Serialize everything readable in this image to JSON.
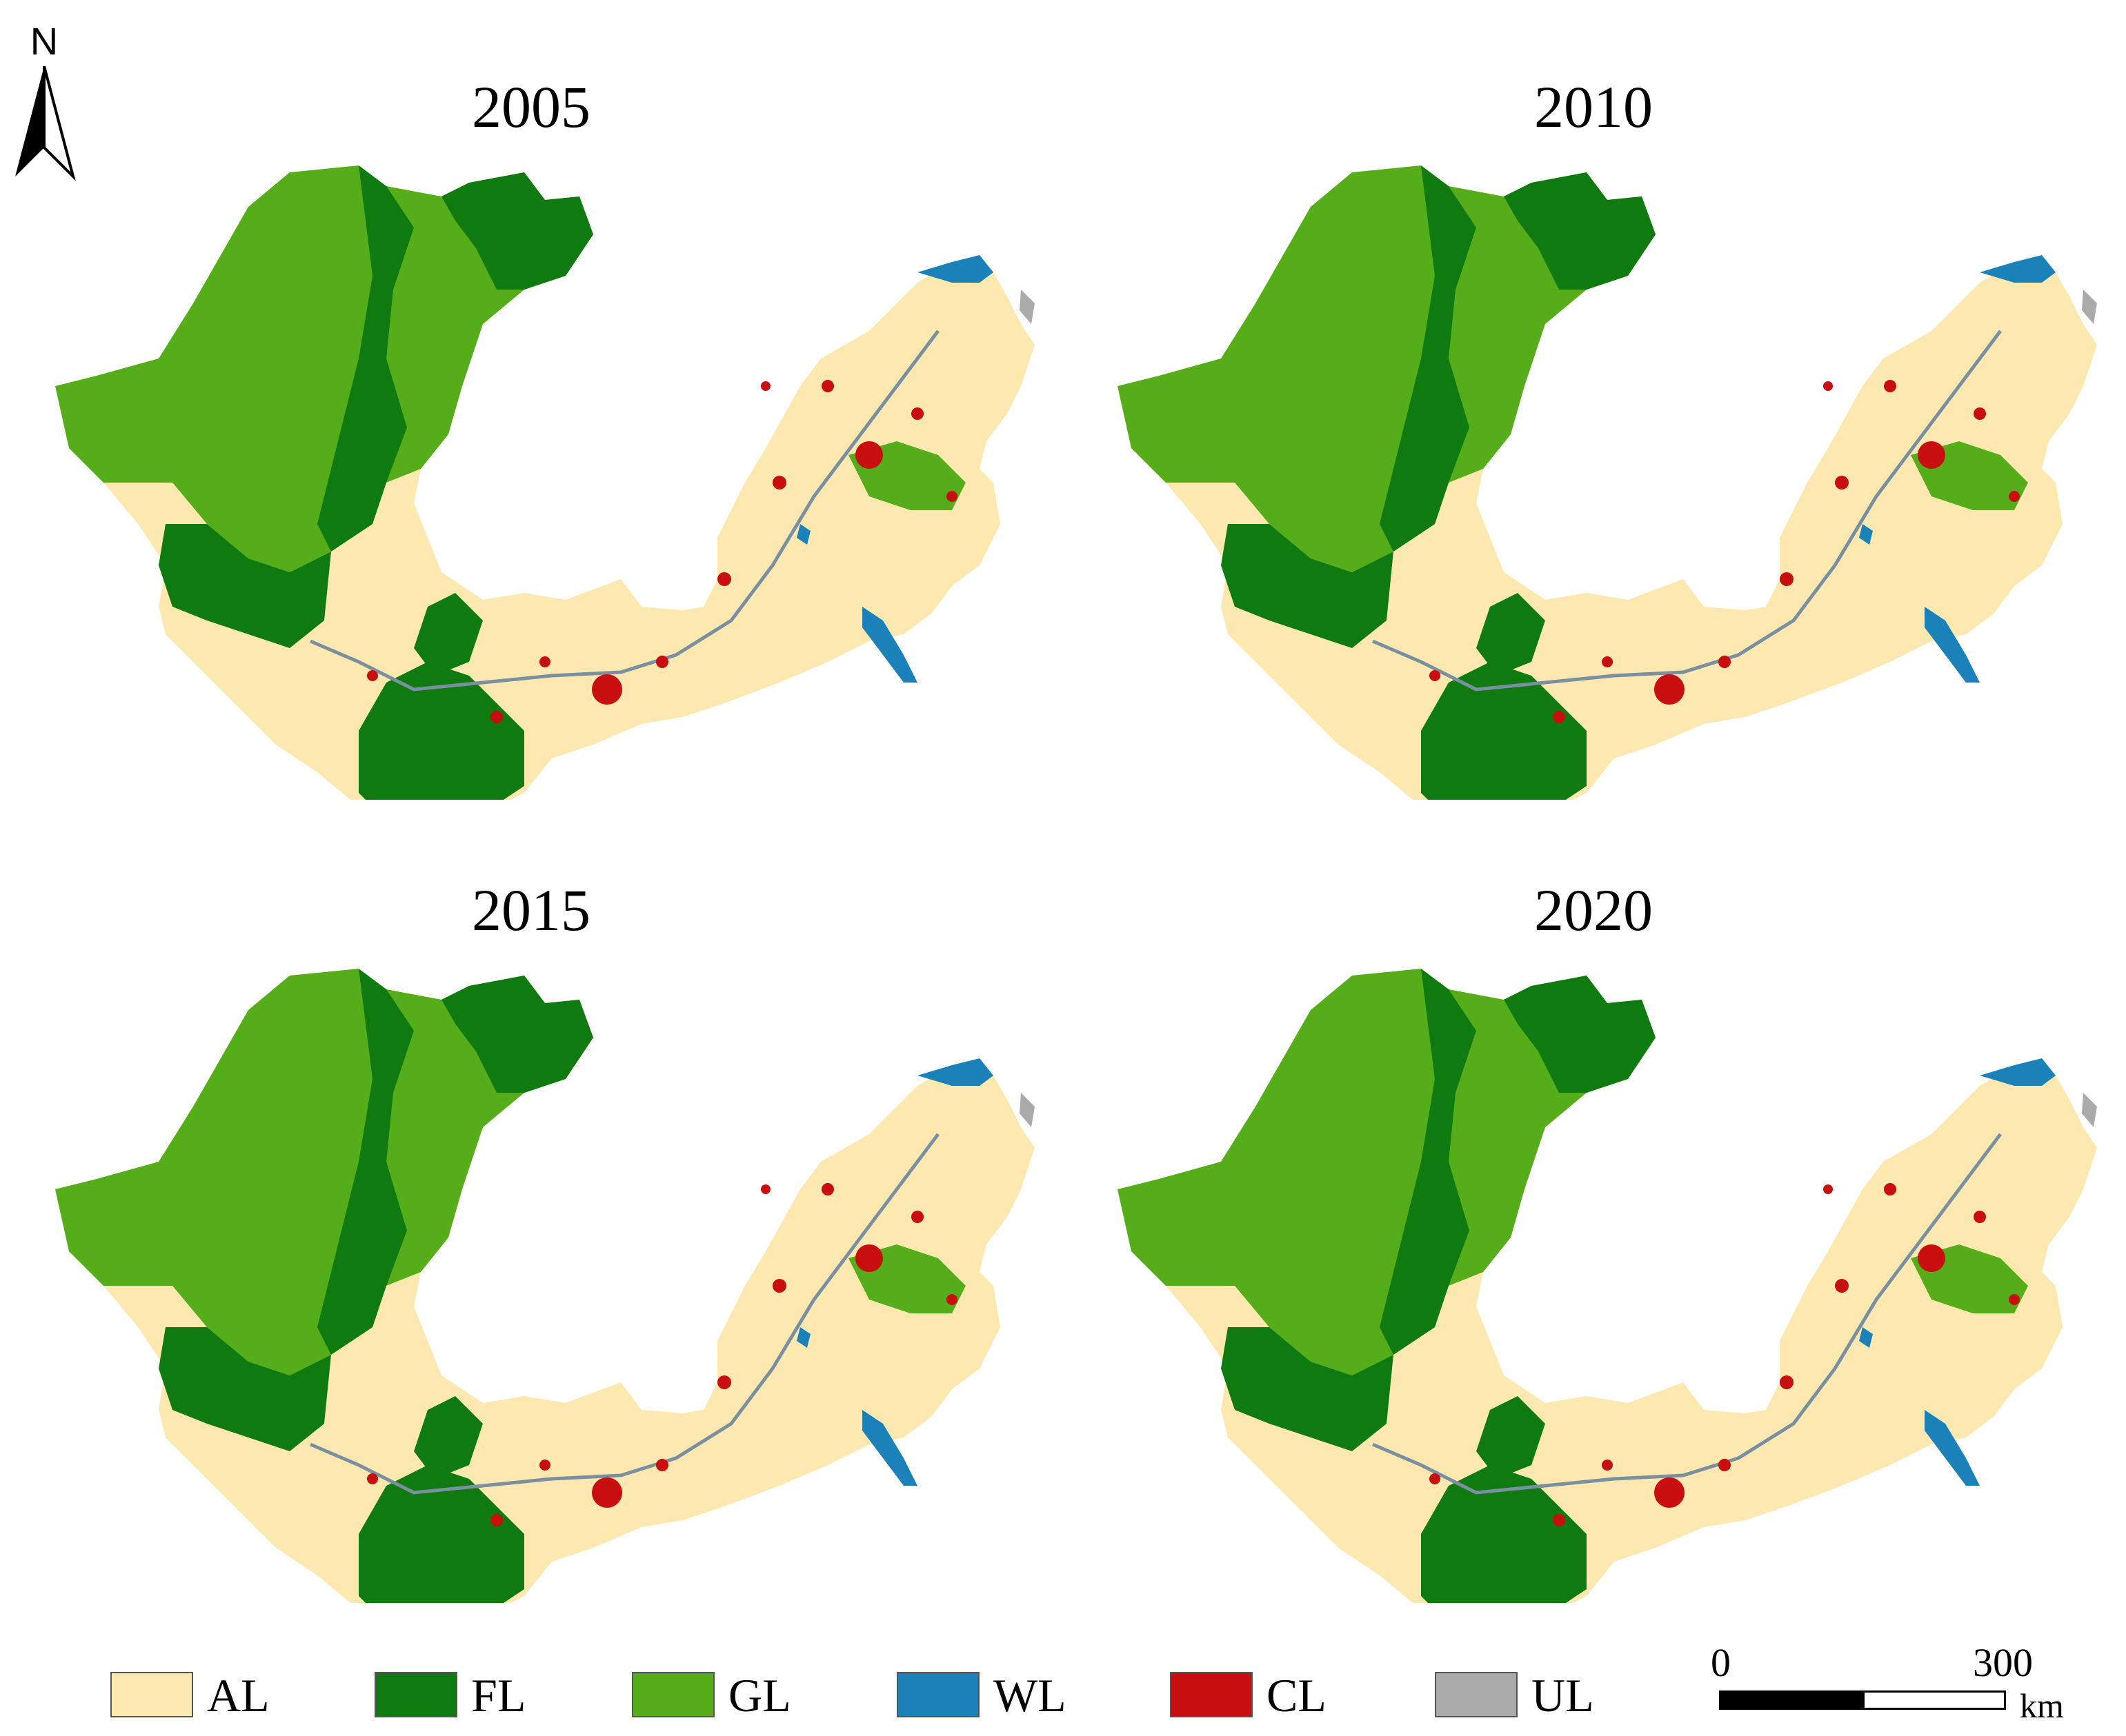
{
  "north_arrow": {
    "label": "N"
  },
  "panels": [
    {
      "year": "2005"
    },
    {
      "year": "2010"
    },
    {
      "year": "2015"
    },
    {
      "year": "2020"
    }
  ],
  "legend": [
    {
      "code": "AL",
      "color": "#fde9b0"
    },
    {
      "code": "FL",
      "color": "#0f7a0f"
    },
    {
      "code": "GL",
      "color": "#55ad1a"
    },
    {
      "code": "WL",
      "color": "#1a82b8"
    },
    {
      "code": "CL",
      "color": "#c80e0e"
    },
    {
      "code": "UL",
      "color": "#aaaaaa"
    }
  ],
  "scale_bar": {
    "start": "0",
    "end": "300",
    "unit": "km"
  }
}
